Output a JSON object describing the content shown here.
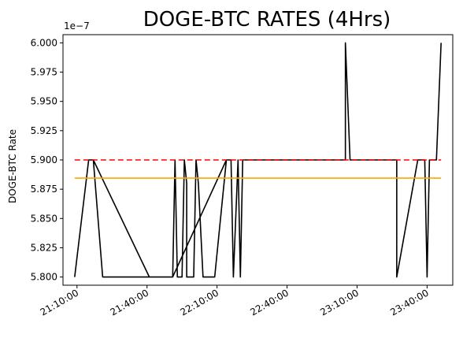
{
  "chart_data": {
    "type": "line",
    "title": "DOGE-BTC RATES (4Hrs)",
    "xlabel": "",
    "ylabel": "DOGE-BTC Rate",
    "y_offset_label": "1e−7",
    "y_ticks": [
      "5.800",
      "5.825",
      "5.850",
      "5.875",
      "5.900",
      "5.925",
      "5.950",
      "5.975",
      "6.000"
    ],
    "y_tick_values": [
      5.8,
      5.825,
      5.85,
      5.875,
      5.9,
      5.925,
      5.95,
      5.975,
      6.0
    ],
    "ylim": [
      5.793,
      6.007
    ],
    "x_ticks": [
      "21:10:00",
      "21:40:00",
      "22:10:00",
      "22:40:00",
      "23:10:00",
      "23:40:00"
    ],
    "x_tick_times": [
      "21:10:00",
      "21:40:00",
      "22:10:00",
      "22:40:00",
      "23:10:00",
      "23:40:00"
    ],
    "xlim": [
      "21:04:00",
      "23:51:00"
    ],
    "grid": false,
    "series": [
      {
        "color": "#000000",
        "style": "solid",
        "points": [
          [
            "21:09:00",
            5.8
          ],
          [
            "21:15:00",
            5.9
          ],
          [
            "21:17:00",
            5.9
          ],
          [
            "21:21:00",
            5.8
          ],
          [
            "21:41:00",
            5.8
          ],
          [
            "21:17:00",
            5.9
          ],
          [
            "21:41:00",
            5.8
          ],
          [
            "21:51:00",
            5.8
          ],
          [
            "21:52:00",
            5.9
          ],
          [
            "21:53:00",
            5.8
          ],
          [
            "21:55:00",
            5.8
          ],
          [
            "21:56:00",
            5.9
          ],
          [
            "21:57:00",
            5.88
          ],
          [
            "21:57:00",
            5.8
          ],
          [
            "22:00:00",
            5.8
          ],
          [
            "22:01:00",
            5.9
          ],
          [
            "22:02:00",
            5.88
          ],
          [
            "22:04:00",
            5.8
          ],
          [
            "22:09:00",
            5.8
          ],
          [
            "22:14:00",
            5.9
          ],
          [
            "21:51:00",
            5.8
          ],
          [
            "22:14:00",
            5.9
          ],
          [
            "22:16:00",
            5.9
          ],
          [
            "22:17:00",
            5.8
          ],
          [
            "22:19:00",
            5.9
          ],
          [
            "22:20:00",
            5.8
          ],
          [
            "22:21:00",
            5.9
          ],
          [
            "22:21:00",
            5.9
          ],
          [
            "22:47:00",
            5.9
          ],
          [
            "23:05:00",
            5.9
          ],
          [
            "23:05:00",
            6.0
          ],
          [
            "23:07:00",
            5.9
          ],
          [
            "23:05:00",
            6.0
          ],
          [
            "23:07:00",
            5.9
          ],
          [
            "23:27:00",
            5.9
          ],
          [
            "23:27:00",
            5.8
          ],
          [
            "23:36:00",
            5.9
          ],
          [
            "23:39:00",
            5.9
          ],
          [
            "23:40:00",
            5.8
          ],
          [
            "23:41:00",
            5.9
          ],
          [
            "23:44:00",
            5.9
          ],
          [
            "23:46:00",
            6.0
          ]
        ]
      },
      {
        "color": "#ff0000",
        "style": "dashed",
        "points": [
          [
            "21:09:00",
            5.9
          ],
          [
            "23:46:00",
            5.9
          ]
        ]
      },
      {
        "color": "#ffa500",
        "style": "solid",
        "points": [
          [
            "21:09:00",
            5.8845
          ],
          [
            "23:46:00",
            5.8845
          ]
        ]
      }
    ]
  }
}
